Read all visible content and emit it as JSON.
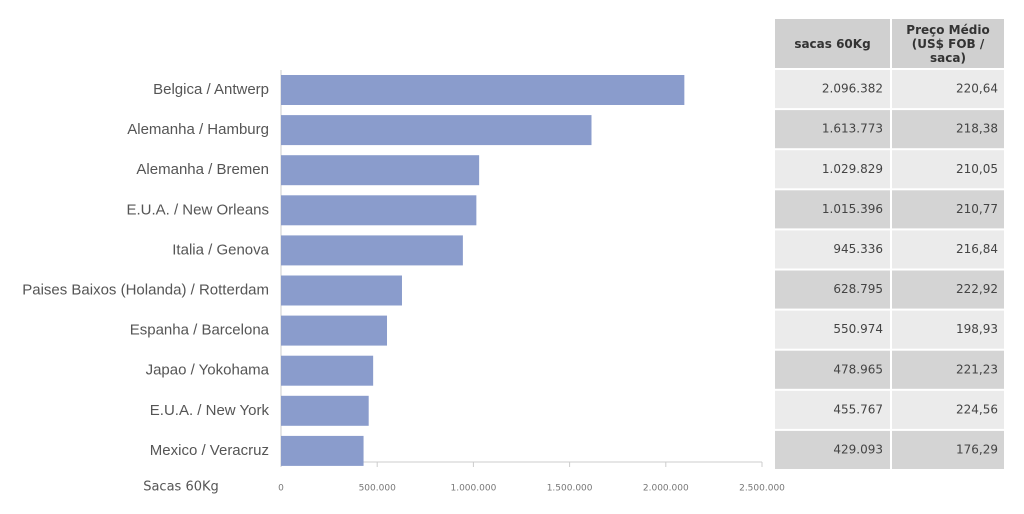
{
  "chart_data": {
    "type": "bar",
    "orientation": "horizontal",
    "categories": [
      "Belgica / Antwerp",
      "Alemanha / Hamburg",
      "Alemanha / Bremen",
      "E.U.A. / New Orleans",
      "Italia / Genova",
      "Paises Baixos (Holanda) / Rotterdam",
      "Espanha / Barcelona",
      "Japao / Yokohama",
      "E.U.A. / New York",
      "Mexico / Veracruz"
    ],
    "values": [
      2096382,
      1613773,
      1029829,
      1015396,
      945336,
      628795,
      550974,
      478965,
      455767,
      429093
    ],
    "value_labels": [
      "2.096.382",
      "1.613.773",
      "1.029.829",
      "1.015.396",
      "945.336",
      "628.795",
      "550.974",
      "478.965",
      "455.767",
      "429.093"
    ],
    "color": "#8a9ccc",
    "xlabel": "Sacas 60Kg",
    "xlim": [
      0,
      2500000
    ],
    "xticks": [
      0,
      {
        "value": 500000,
        "label": "500.000"
      },
      {
        "value": 1000000,
        "label": "1.000.000"
      },
      {
        "value": 1500000,
        "label": "1.500.000"
      },
      {
        "value": 2000000,
        "label": "2.000.000"
      },
      {
        "value": 2500000,
        "label": "2.500.000"
      }
    ]
  },
  "table": {
    "columns": [
      "sacas 60Kg",
      "Preço Médio (US$ FOB / saca)"
    ],
    "prices": [
      "220,64",
      "218,38",
      "210,05",
      "210,77",
      "216,84",
      "222,92",
      "198,93",
      "221,23",
      "224,56",
      "176,29"
    ]
  }
}
